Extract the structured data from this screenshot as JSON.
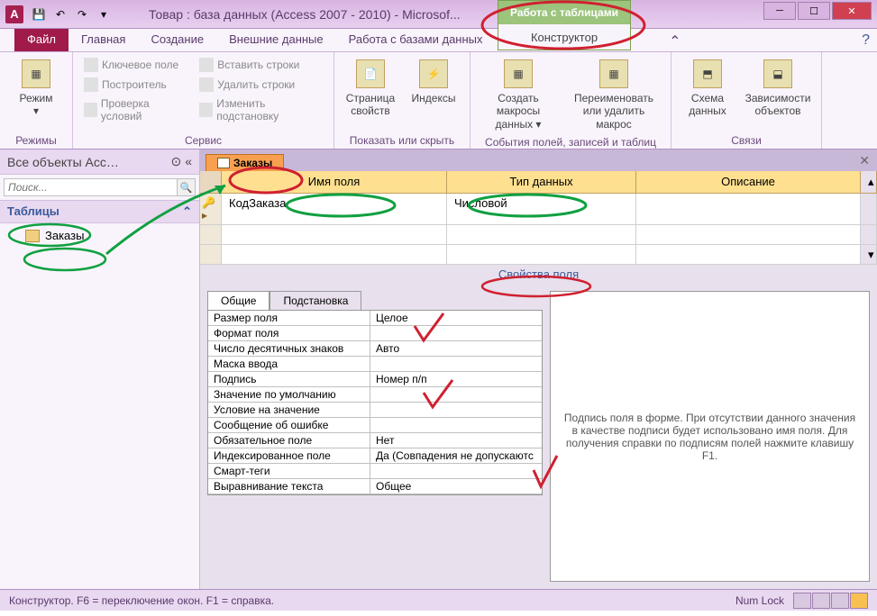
{
  "titlebar": {
    "app_letter": "A",
    "title": "Товар : база данных (Access 2007 - 2010) - Microsof...",
    "context_label": "Работа с таблицами",
    "context_tab": "Конструктор"
  },
  "tabs": {
    "file": "Файл",
    "items": [
      "Главная",
      "Создание",
      "Внешние данные",
      "Работа с базами данных",
      "Конструктор"
    ]
  },
  "ribbon": {
    "group1": {
      "label": "Режимы",
      "btn": "Режим"
    },
    "group2": {
      "label": "Сервис",
      "items": [
        "Ключевое поле",
        "Построитель",
        "Проверка условий",
        "Вставить строки",
        "Удалить строки",
        "Изменить подстановку"
      ]
    },
    "group3": {
      "label": "Показать или скрыть",
      "btn1": "Страница свойств",
      "btn2": "Индексы"
    },
    "group4": {
      "label": "События полей, записей и таблиц",
      "btn1": "Создать макросы данных ▾",
      "btn2": "Переименовать или удалить макрос"
    },
    "group5": {
      "label": "Связи",
      "btn1": "Схема данных",
      "btn2": "Зависимости объектов"
    }
  },
  "nav": {
    "header": "Все объекты Acc…",
    "search_placeholder": "Поиск...",
    "section": "Таблицы",
    "item": "Заказы"
  },
  "doc": {
    "tab": "Заказы",
    "col_name": "Имя поля",
    "col_type": "Тип данных",
    "col_desc": "Описание",
    "row1_name": "КодЗаказа",
    "row1_type": "Числовой"
  },
  "props": {
    "section_label": "Свойства поля",
    "tab1": "Общие",
    "tab2": "Подстановка",
    "rows": [
      {
        "n": "Размер поля",
        "v": "Целое"
      },
      {
        "n": "Формат поля",
        "v": ""
      },
      {
        "n": "Число десятичных знаков",
        "v": "Авто"
      },
      {
        "n": "Маска ввода",
        "v": ""
      },
      {
        "n": "Подпись",
        "v": "Номер п/п"
      },
      {
        "n": "Значение по умолчанию",
        "v": ""
      },
      {
        "n": "Условие на значение",
        "v": ""
      },
      {
        "n": "Сообщение об ошибке",
        "v": ""
      },
      {
        "n": "Обязательное поле",
        "v": "Нет"
      },
      {
        "n": "Индексированное поле",
        "v": "Да (Совпадения не допускаютс"
      },
      {
        "n": "Смарт-теги",
        "v": ""
      },
      {
        "n": "Выравнивание текста",
        "v": "Общее"
      }
    ],
    "help": "Подпись поля в форме. При отсутствии данного значения в качестве подписи будет использовано имя поля. Для получения справки по подписям полей нажмите клавишу F1."
  },
  "status": {
    "left": "Конструктор.  F6 = переключение окон.  F1 = справка.",
    "numlock": "Num Lock"
  },
  "annotations": {
    "color_red": "#d02030",
    "color_green": "#10a040"
  }
}
